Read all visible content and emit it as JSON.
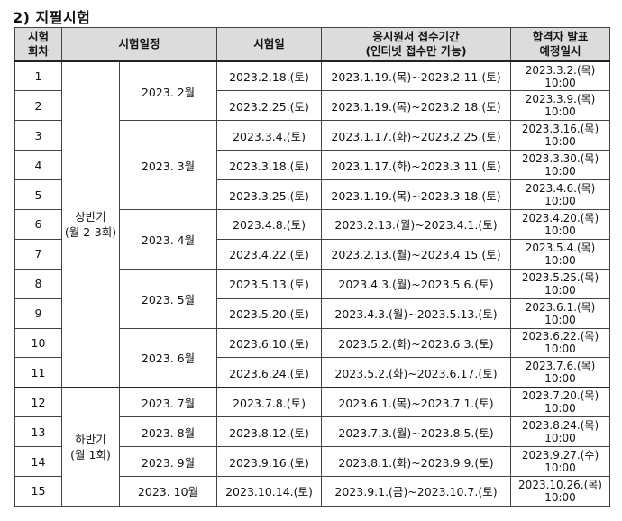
{
  "heading": "2) 지필시험",
  "headers": {
    "round_line1": "시험",
    "round_line2": "회차",
    "schedule": "시험일정",
    "exam_date": "시험일",
    "application_line1": "응시원서 접수기간",
    "application_line2": "(인터넷 접수만 가능)",
    "announce_line1": "합격자 발표",
    "announce_line2": "예정일시"
  },
  "halves": [
    {
      "label_line1": "상반기",
      "label_line2": "(월 2-3회)"
    },
    {
      "label_line1": "하반기",
      "label_line2": "(월 1회)"
    }
  ],
  "months": [
    "2023. 2월",
    "2023. 3월",
    "2023. 4월",
    "2023. 5월",
    "2023. 6월",
    "2023. 7월",
    "2023. 8월",
    "2023. 9월",
    "2023. 10월"
  ],
  "rows": [
    {
      "round": "1",
      "exam_date": "2023.2.18.(토)",
      "application": "2023.1.19.(목)~2023.2.11.(토)",
      "announce_date": "2023.3.2.(목)",
      "announce_time": "10:00"
    },
    {
      "round": "2",
      "exam_date": "2023.2.25.(토)",
      "application": "2023.1.19.(목)~2023.2.18.(토)",
      "announce_date": "2023.3.9.(목)",
      "announce_time": "10:00"
    },
    {
      "round": "3",
      "exam_date": "2023.3.4.(토)",
      "application": "2023.1.17.(화)~2023.2.25.(토)",
      "announce_date": "2023.3.16.(목)",
      "announce_time": "10:00"
    },
    {
      "round": "4",
      "exam_date": "2023.3.18.(토)",
      "application": "2023.1.17.(화)~2023.3.11.(토)",
      "announce_date": "2023.3.30.(목)",
      "announce_time": "10:00"
    },
    {
      "round": "5",
      "exam_date": "2023.3.25.(토)",
      "application": "2023.1.19.(목)~2023.3.18.(토)",
      "announce_date": "2023.4.6.(목)",
      "announce_time": "10:00"
    },
    {
      "round": "6",
      "exam_date": "2023.4.8.(토)",
      "application": "2023.2.13.(월)~2023.4.1.(토)",
      "announce_date": "2023.4.20.(목)",
      "announce_time": "10:00"
    },
    {
      "round": "7",
      "exam_date": "2023.4.22.(토)",
      "application": "2023.2.13.(월)~2023.4.15.(토)",
      "announce_date": "2023.5.4.(목)",
      "announce_time": "10:00"
    },
    {
      "round": "8",
      "exam_date": "2023.5.13.(토)",
      "application": "2023.4.3.(월)~2023.5.6.(토)",
      "announce_date": "2023.5.25.(목)",
      "announce_time": "10:00"
    },
    {
      "round": "9",
      "exam_date": "2023.5.20.(토)",
      "application": "2023.4.3.(월)~2023.5.13.(토)",
      "announce_date": "2023.6.1.(목)",
      "announce_time": "10:00"
    },
    {
      "round": "10",
      "exam_date": "2023.6.10.(토)",
      "application": "2023.5.2.(화)~2023.6.3.(토)",
      "announce_date": "2023.6.22.(목)",
      "announce_time": "10:00"
    },
    {
      "round": "11",
      "exam_date": "2023.6.24.(토)",
      "application": "2023.5.2.(화)~2023.6.17.(토)",
      "announce_date": "2023.7.6.(목)",
      "announce_time": "10:00"
    },
    {
      "round": "12",
      "exam_date": "2023.7.8.(토)",
      "application": "2023.6.1.(목)~2023.7.1.(토)",
      "announce_date": "2023.7.20.(목)",
      "announce_time": "10:00"
    },
    {
      "round": "13",
      "exam_date": "2023.8.12.(토)",
      "application": "2023.7.3.(월)~2023.8.5.(토)",
      "announce_date": "2023.8.24.(목)",
      "announce_time": "10:00"
    },
    {
      "round": "14",
      "exam_date": "2023.9.16.(토)",
      "application": "2023.8.1.(화)~2023.9.9.(토)",
      "announce_date": "2023.9.27.(수)",
      "announce_time": "10:00"
    },
    {
      "round": "15",
      "exam_date": "2023.10.14.(토)",
      "application": "2023.9.1.(금)~2023.10.7.(토)",
      "announce_date": "2023.10.26.(목)",
      "announce_time": "10:00"
    }
  ]
}
